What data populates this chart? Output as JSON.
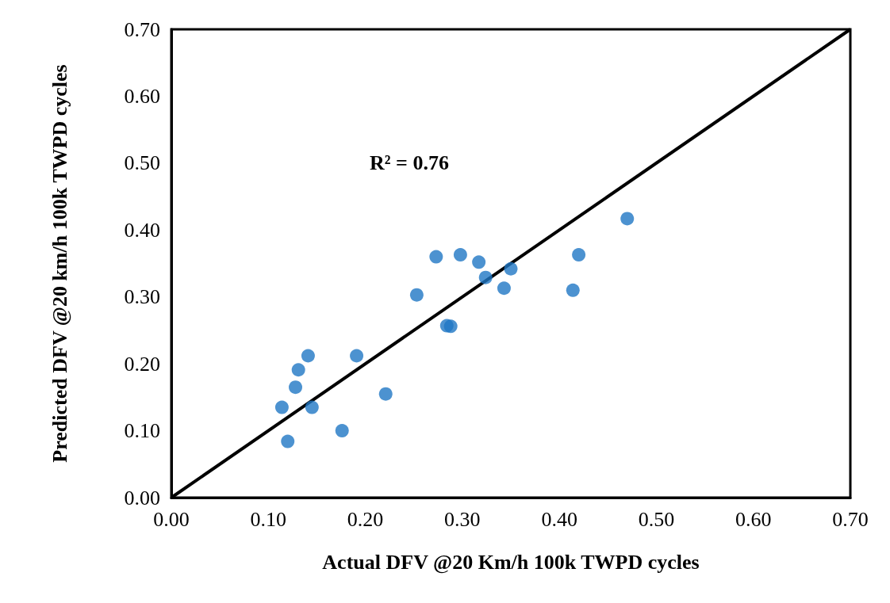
{
  "chart_data": {
    "type": "scatter",
    "xlabel": "Actual DFV @20 Km/h 100k TWPD cycles",
    "ylabel": "Predicted DFV @20 km/h 100k TWPD cycles",
    "annotations": [
      "R² = 0.76"
    ],
    "xlim": [
      0,
      0.7
    ],
    "ylim": [
      0,
      0.7
    ],
    "xticks": [
      {
        "value": 0,
        "label": "0.00"
      },
      {
        "value": 0.1,
        "label": "0.10"
      },
      {
        "value": 0.2,
        "label": "0.20"
      },
      {
        "value": 0.3,
        "label": "0.30"
      },
      {
        "value": 0.4,
        "label": "0.40"
      },
      {
        "value": 0.5,
        "label": "0.50"
      },
      {
        "value": 0.6,
        "label": "0.60"
      },
      {
        "value": 0.7,
        "label": "0.70"
      }
    ],
    "yticks": [
      {
        "value": 0,
        "label": "0.00"
      },
      {
        "value": 0.1,
        "label": "0.10"
      },
      {
        "value": 0.2,
        "label": "0.20"
      },
      {
        "value": 0.3,
        "label": "0.30"
      },
      {
        "value": 0.4,
        "label": "0.40"
      },
      {
        "value": 0.5,
        "label": "0.50"
      },
      {
        "value": 0.6,
        "label": "0.60"
      },
      {
        "value": 0.7,
        "label": "0.70"
      }
    ],
    "grid": false,
    "marker": "circle",
    "series": [
      {
        "color": "#1f77c4",
        "x": [
          0.114,
          0.12,
          0.128,
          0.131,
          0.141,
          0.145,
          0.176,
          0.191,
          0.221,
          0.253,
          0.273,
          0.284,
          0.288,
          0.298,
          0.317,
          0.324,
          0.343,
          0.35,
          0.414,
          0.42,
          0.47
        ],
        "values": [
          0.135,
          0.084,
          0.165,
          0.191,
          0.212,
          0.135,
          0.1,
          0.212,
          0.155,
          0.303,
          0.36,
          0.257,
          0.256,
          0.363,
          0.352,
          0.329,
          0.313,
          0.342,
          0.31,
          0.363,
          0.417
        ]
      },
      {
        "type": "line",
        "color": "#000000",
        "x": [
          0,
          0.7
        ],
        "values": [
          0,
          0.7
        ],
        "marker": "none",
        "line_style": "solid"
      }
    ]
  }
}
